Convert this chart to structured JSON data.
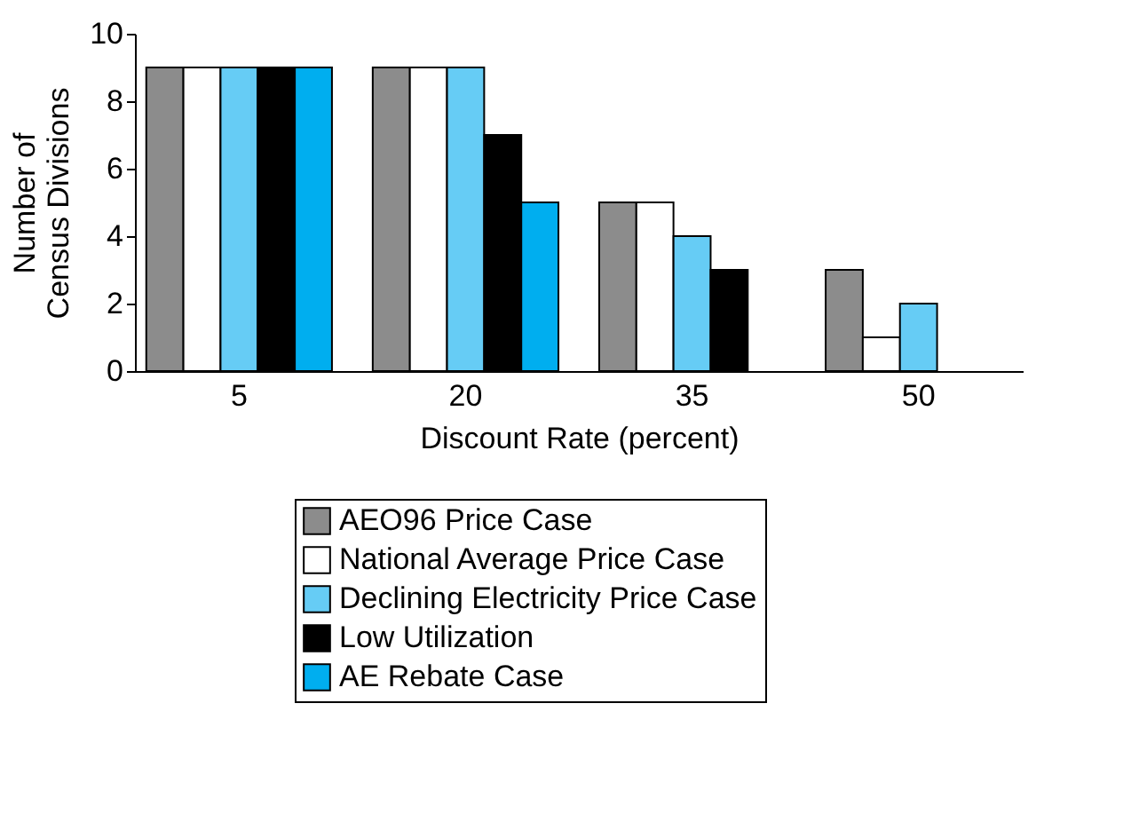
{
  "chart_data": {
    "type": "bar",
    "xlabel": "Discount Rate (percent)",
    "ylabel": "Number of\nCensus Divisions",
    "categories": [
      "5",
      "20",
      "35",
      "50"
    ],
    "series": [
      {
        "name": "AEO96 Price Case",
        "color": "#8c8c8c",
        "values": [
          9,
          9,
          5,
          3
        ]
      },
      {
        "name": "National Average Price Case",
        "color": "#ffffff",
        "values": [
          9,
          9,
          5,
          1
        ]
      },
      {
        "name": "Declining Electricity Price Case",
        "color": "#66ccf5",
        "values": [
          9,
          9,
          4,
          2
        ]
      },
      {
        "name": "Low Utilization",
        "color": "#000000",
        "values": [
          9,
          7,
          3,
          0
        ]
      },
      {
        "name": "AE Rebate Case",
        "color": "#00aeef",
        "values": [
          9,
          5,
          0,
          0
        ]
      }
    ],
    "ylim": [
      0,
      10
    ],
    "yticks": [
      0,
      2,
      4,
      6,
      8,
      10
    ],
    "grid": false,
    "legend": "bottom"
  }
}
